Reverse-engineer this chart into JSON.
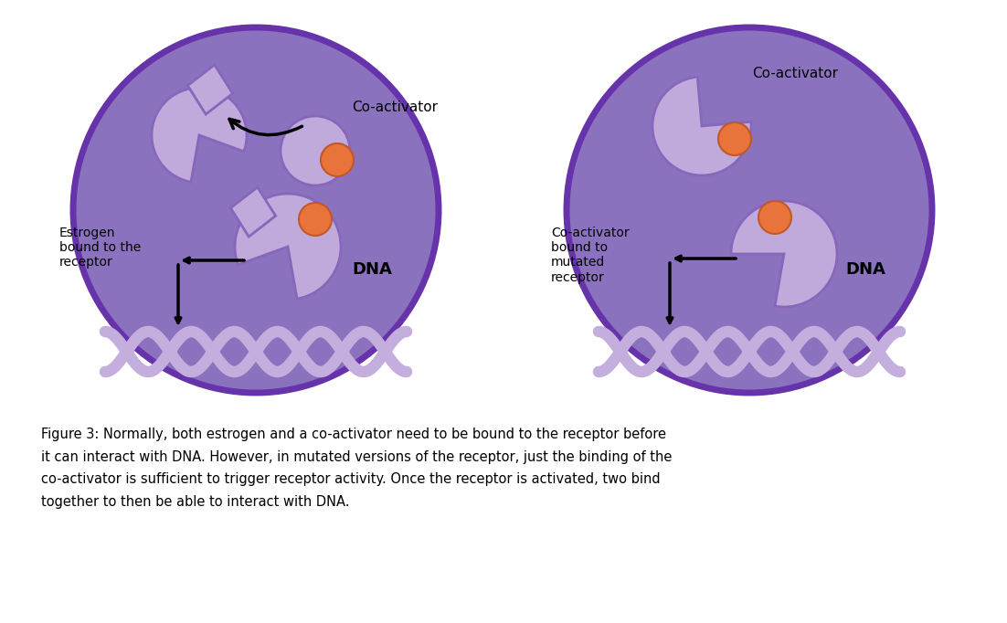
{
  "bg_color": "#ffffff",
  "circle_fill": "#8B72BE",
  "circle_edge": "#6633AA",
  "circle_edge_width": 5,
  "receptor_fill": "#C0AADC",
  "receptor_edge": "#8866BB",
  "estrogen_fill": "#E8743B",
  "estrogen_edge": "#C05828",
  "dna_color": "#C4AEDE",
  "text_color": "#000000",
  "figure_caption": "Figure 3: Normally, both estrogen and a co-activator need to be bound to the receptor before\nit can interact with DNA. However, in mutated versions of the receptor, just the binding of the\nco-activator is sufficient to trigger receptor activity. Once the receptor is activated, two bind\ntogether to then be able to interact with DNA."
}
